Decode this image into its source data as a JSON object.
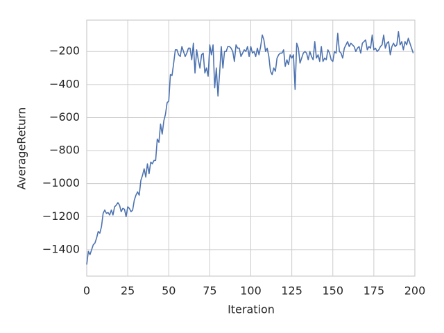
{
  "chart_data": {
    "type": "line",
    "xlabel": "Iteration",
    "ylabel": "AverageReturn",
    "xlim": [
      0,
      200
    ],
    "ylim": [
      -1560,
      -10
    ],
    "xticks": [
      0,
      25,
      50,
      75,
      100,
      125,
      150,
      175,
      200
    ],
    "yticks": [
      {
        "value": -1400,
        "label": "−1400"
      },
      {
        "value": -1200,
        "label": "−1200"
      },
      {
        "value": -1000,
        "label": "−1000"
      },
      {
        "value": -800,
        "label": "−800"
      },
      {
        "value": -600,
        "label": "−600"
      },
      {
        "value": -400,
        "label": "−400"
      },
      {
        "value": -200,
        "label": "−200"
      }
    ],
    "grid": true,
    "x": [
      0,
      1,
      2,
      3,
      4,
      5,
      6,
      7,
      8,
      9,
      10,
      11,
      12,
      13,
      14,
      15,
      16,
      17,
      18,
      19,
      20,
      21,
      22,
      23,
      24,
      25,
      26,
      27,
      28,
      29,
      30,
      31,
      32,
      33,
      34,
      35,
      36,
      37,
      38,
      39,
      40,
      41,
      42,
      43,
      44,
      45,
      46,
      47,
      48,
      49,
      50,
      51,
      52,
      53,
      54,
      55,
      56,
      57,
      58,
      59,
      60,
      61,
      62,
      63,
      64,
      65,
      66,
      67,
      68,
      69,
      70,
      71,
      72,
      73,
      74,
      75,
      76,
      77,
      78,
      79,
      80,
      81,
      82,
      83,
      84,
      85,
      86,
      87,
      88,
      89,
      90,
      91,
      92,
      93,
      94,
      95,
      96,
      97,
      98,
      99,
      100,
      101,
      102,
      103,
      104,
      105,
      106,
      107,
      108,
      109,
      110,
      111,
      112,
      113,
      114,
      115,
      116,
      117,
      118,
      119,
      120,
      121,
      122,
      123,
      124,
      125,
      126,
      127,
      128,
      129,
      130,
      131,
      132,
      133,
      134,
      135,
      136,
      137,
      138,
      139,
      140,
      141,
      142,
      143,
      144,
      145,
      146,
      147,
      148,
      149,
      150,
      151,
      152,
      153,
      154,
      155,
      156,
      157,
      158,
      159,
      160,
      161,
      162,
      163,
      164,
      165,
      166,
      167,
      168,
      169,
      170,
      171,
      172,
      173,
      174,
      175,
      176,
      177,
      178,
      179,
      180,
      181,
      182,
      183,
      184,
      185,
      186,
      187,
      188,
      189,
      190,
      191,
      192,
      193,
      194,
      195,
      196,
      197,
      198,
      199
    ],
    "series": [
      {
        "color": "#4c72b0",
        "values": [
          -1490,
          -1410,
          -1430,
          -1400,
          -1370,
          -1360,
          -1330,
          -1290,
          -1300,
          -1260,
          -1180,
          -1160,
          -1180,
          -1175,
          -1190,
          -1160,
          -1190,
          -1140,
          -1130,
          -1115,
          -1130,
          -1170,
          -1150,
          -1155,
          -1200,
          -1140,
          -1150,
          -1170,
          -1160,
          -1100,
          -1070,
          -1050,
          -1070,
          -980,
          -950,
          -910,
          -960,
          -880,
          -940,
          -870,
          -880,
          -860,
          -860,
          -730,
          -750,
          -640,
          -700,
          -620,
          -580,
          -510,
          -500,
          -340,
          -345,
          -270,
          -190,
          -190,
          -220,
          -230,
          -170,
          -200,
          -230,
          -210,
          -180,
          -180,
          -250,
          -150,
          -330,
          -190,
          -250,
          -300,
          -220,
          -210,
          -330,
          -300,
          -350,
          -160,
          -220,
          -160,
          -420,
          -300,
          -470,
          -330,
          -170,
          -300,
          -200,
          -200,
          -170,
          -170,
          -180,
          -200,
          -260,
          -160,
          -180,
          -180,
          -230,
          -210,
          -190,
          -200,
          -170,
          -230,
          -170,
          -210,
          -200,
          -230,
          -180,
          -220,
          -170,
          -100,
          -130,
          -200,
          -180,
          -230,
          -320,
          -340,
          -300,
          -320,
          -240,
          -220,
          -210,
          -210,
          -190,
          -290,
          -250,
          -280,
          -220,
          -240,
          -220,
          -430,
          -150,
          -180,
          -270,
          -240,
          -210,
          -200,
          -210,
          -250,
          -200,
          -230,
          -250,
          -140,
          -240,
          -220,
          -260,
          -170,
          -260,
          -240,
          -250,
          -190,
          -210,
          -250,
          -260,
          -200,
          -210,
          -90,
          -200,
          -210,
          -240,
          -180,
          -160,
          -140,
          -170,
          -150,
          -160,
          -170,
          -200,
          -180,
          -170,
          -210,
          -150,
          -140,
          -130,
          -190,
          -170,
          -180,
          -100,
          -190,
          -180,
          -200,
          -190,
          -170,
          -160,
          -100,
          -180,
          -150,
          -140,
          -220,
          -170,
          -150,
          -170,
          -160,
          -80,
          -160,
          -140,
          -190,
          -140,
          -160,
          -120,
          -150,
          -180,
          -210
        ]
      }
    ]
  }
}
